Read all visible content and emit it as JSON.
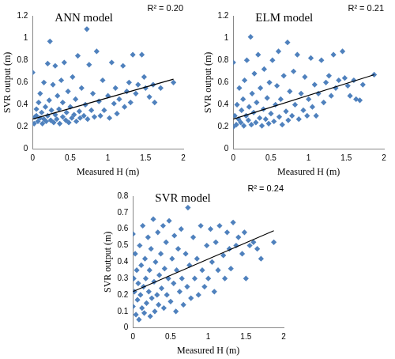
{
  "chart_data": [
    {
      "type": "scatter",
      "title": "ANN model",
      "annotation": "R² = 0.20",
      "x_label": "Measured H (m)",
      "y_label": "SVR output (m)",
      "xlim": [
        0,
        2
      ],
      "xticks": [
        0,
        0.5,
        1,
        1.5,
        2
      ],
      "ylim": [
        0,
        1.2
      ],
      "yticks": [
        0,
        0.2,
        0.4,
        0.6,
        0.8,
        1,
        1.2
      ],
      "grid": false,
      "series": [
        {
          "color": "#4f81bd",
          "marker": "diamond",
          "x": [
            0,
            0.02,
            0.03,
            0.05,
            0.05,
            0.07,
            0.08,
            0.1,
            0.1,
            0.12,
            0.13,
            0.15,
            0.15,
            0.17,
            0.18,
            0.2,
            0.2,
            0.22,
            0.23,
            0.24,
            0.25,
            0.27,
            0.28,
            0.3,
            0.3,
            0.32,
            0.33,
            0.35,
            0.36,
            0.38,
            0.4,
            0.4,
            0.42,
            0.44,
            0.45,
            0.47,
            0.48,
            0.5,
            0.52,
            0.53,
            0.55,
            0.57,
            0.58,
            0.6,
            0.62,
            0.63,
            0.65,
            0.68,
            0.7,
            0.72,
            0.73,
            0.75,
            0.78,
            0.8,
            0.82,
            0.85,
            0.88,
            0.9,
            0.93,
            0.95,
            1.0,
            1.02,
            1.05,
            1.08,
            1.1,
            1.12,
            1.15,
            1.2,
            1.22,
            1.25,
            1.28,
            1.3,
            1.33,
            1.37,
            1.4,
            1.45,
            1.48,
            1.5,
            1.55,
            1.6,
            1.62,
            1.7,
            1.87
          ],
          "values": [
            0.69,
            0.23,
            0.29,
            0.3,
            0.36,
            0.25,
            0.42,
            0.28,
            0.5,
            0.33,
            0.23,
            0.6,
            0.27,
            0.38,
            0.25,
            0.3,
            0.77,
            0.44,
            0.97,
            0.26,
            0.35,
            0.58,
            0.24,
            0.31,
            0.75,
            0.27,
            0.48,
            0.36,
            0.23,
            0.62,
            0.29,
            0.42,
            0.78,
            0.26,
            0.33,
            0.52,
            0.24,
            0.38,
            0.28,
            0.65,
            0.31,
            0.45,
            0.25,
            0.84,
            0.34,
            0.28,
            0.55,
            0.3,
            0.4,
            1.08,
            0.27,
            0.76,
            0.35,
            0.5,
            0.29,
            0.88,
            0.43,
            0.3,
            0.62,
            0.35,
            0.48,
            0.28,
            0.78,
            0.41,
            0.55,
            0.32,
            0.45,
            0.75,
            0.38,
            0.52,
            0.6,
            0.42,
            0.85,
            0.5,
            0.58,
            0.85,
            0.65,
            0.55,
            0.47,
            0.58,
            0.42,
            0.55,
            0.6
          ]
        },
        {
          "type": "line",
          "color": "#000000",
          "line_style": "solid",
          "x": [
            0,
            1.87
          ],
          "values": [
            0.27,
            0.63
          ]
        }
      ]
    },
    {
      "type": "scatter",
      "title": "ELM model",
      "annotation": "R² = 0.21",
      "x_label": "Measured H (m)",
      "y_label": "SVR output (m)",
      "xlim": [
        0,
        2
      ],
      "xticks": [
        0,
        0.5,
        1,
        1.5,
        2
      ],
      "ylim": [
        0,
        1.2
      ],
      "yticks": [
        0,
        0.2,
        0.4,
        0.6,
        0.8,
        1,
        1.2
      ],
      "grid": false,
      "series": [
        {
          "color": "#4f81bd",
          "marker": "diamond",
          "x": [
            0,
            0,
            0.02,
            0.04,
            0.05,
            0.07,
            0.08,
            0.1,
            0.11,
            0.13,
            0.14,
            0.15,
            0.17,
            0.18,
            0.2,
            0.21,
            0.23,
            0.24,
            0.25,
            0.27,
            0.28,
            0.3,
            0.31,
            0.33,
            0.35,
            0.36,
            0.38,
            0.4,
            0.41,
            0.43,
            0.45,
            0.47,
            0.48,
            0.5,
            0.52,
            0.54,
            0.56,
            0.58,
            0.6,
            0.61,
            0.63,
            0.65,
            0.67,
            0.7,
            0.72,
            0.73,
            0.75,
            0.78,
            0.8,
            0.82,
            0.85,
            0.87,
            0.9,
            0.93,
            0.95,
            0.98,
            1.0,
            1.03,
            1.05,
            1.08,
            1.1,
            1.13,
            1.17,
            1.2,
            1.23,
            1.27,
            1.3,
            1.33,
            1.36,
            1.4,
            1.45,
            1.48,
            1.52,
            1.55,
            1.6,
            1.63,
            1.68,
            1.72,
            1.87
          ],
          "values": [
            0.78,
            0.2,
            0.3,
            0.22,
            0.4,
            0.27,
            0.55,
            0.24,
            0.35,
            0.45,
            0.21,
            0.62,
            0.3,
            0.8,
            0.26,
            0.38,
            1.01,
            0.22,
            0.5,
            0.33,
            0.68,
            0.24,
            0.42,
            0.85,
            0.28,
            0.55,
            0.21,
            0.36,
            0.72,
            0.27,
            0.46,
            0.23,
            0.6,
            0.32,
            0.8,
            0.25,
            0.4,
            0.57,
            0.88,
            0.29,
            0.45,
            0.22,
            0.66,
            0.34,
            0.96,
            0.26,
            0.52,
            0.3,
            0.7,
            0.4,
            0.85,
            0.27,
            0.5,
            0.35,
            0.65,
            0.3,
            0.45,
            0.82,
            0.38,
            0.58,
            0.3,
            0.5,
            0.8,
            0.42,
            0.6,
            0.66,
            0.48,
            0.85,
            0.55,
            0.62,
            0.88,
            0.64,
            0.57,
            0.48,
            0.62,
            0.45,
            0.44,
            0.58,
            0.67
          ]
        },
        {
          "type": "line",
          "color": "#000000",
          "line_style": "solid",
          "x": [
            0,
            1.87
          ],
          "values": [
            0.27,
            0.67
          ]
        }
      ]
    },
    {
      "type": "scatter",
      "title": "SVR model",
      "annotation": "R² = 0.24",
      "x_label": "Measured H (m)",
      "y_label": "SVR output (m)",
      "xlim": [
        0,
        2
      ],
      "xticks": [
        0,
        0.5,
        1,
        1.5,
        2
      ],
      "ylim": [
        0,
        0.8
      ],
      "yticks": [
        0,
        0.1,
        0.2,
        0.3,
        0.4,
        0.5,
        0.6,
        0.7,
        0.8
      ],
      "grid": false,
      "series": [
        {
          "color": "#4f81bd",
          "marker": "diamond",
          "x": [
            0,
            0,
            0.01,
            0.02,
            0.03,
            0.04,
            0.05,
            0.06,
            0.07,
            0.08,
            0.09,
            0.1,
            0.11,
            0.12,
            0.13,
            0.14,
            0.15,
            0.16,
            0.17,
            0.18,
            0.2,
            0.21,
            0.22,
            0.23,
            0.24,
            0.25,
            0.27,
            0.28,
            0.29,
            0.3,
            0.32,
            0.33,
            0.34,
            0.35,
            0.37,
            0.38,
            0.4,
            0.41,
            0.42,
            0.44,
            0.45,
            0.47,
            0.48,
            0.5,
            0.52,
            0.54,
            0.55,
            0.57,
            0.58,
            0.6,
            0.62,
            0.64,
            0.65,
            0.67,
            0.7,
            0.72,
            0.73,
            0.75,
            0.77,
            0.8,
            0.82,
            0.85,
            0.87,
            0.9,
            0.92,
            0.95,
            0.98,
            1.0,
            1.03,
            1.05,
            1.08,
            1.1,
            1.13,
            1.15,
            1.2,
            1.22,
            1.25,
            1.28,
            1.3,
            1.33,
            1.37,
            1.4,
            1.45,
            1.48,
            1.5,
            1.55,
            1.6,
            1.65,
            1.7,
            1.87
          ],
          "values": [
            0.57,
            0.13,
            0.3,
            0.22,
            0.45,
            0.08,
            0.35,
            0.17,
            0.27,
            0.05,
            0.5,
            0.2,
            0.38,
            0.12,
            0.62,
            0.25,
            0.09,
            0.42,
            0.3,
            0.15,
            0.55,
            0.22,
            0.35,
            0.07,
            0.48,
            0.18,
            0.66,
            0.28,
            0.1,
            0.4,
            0.2,
            0.58,
            0.14,
            0.32,
            0.45,
            0.24,
            0.62,
            0.12,
            0.36,
            0.52,
            0.2,
            0.3,
            0.65,
            0.16,
            0.42,
            0.27,
            0.56,
            0.1,
            0.35,
            0.48,
            0.22,
            0.6,
            0.3,
            0.14,
            0.45,
            0.25,
            0.73,
            0.38,
            0.18,
            0.55,
            0.3,
            0.42,
            0.2,
            0.62,
            0.35,
            0.25,
            0.5,
            0.3,
            0.6,
            0.4,
            0.22,
            0.52,
            0.35,
            0.62,
            0.44,
            0.3,
            0.58,
            0.48,
            0.36,
            0.64,
            0.5,
            0.55,
            0.45,
            0.58,
            0.3,
            0.5,
            0.52,
            0.48,
            0.42,
            0.52
          ]
        },
        {
          "type": "line",
          "color": "#000000",
          "line_style": "solid",
          "x": [
            0,
            1.87
          ],
          "values": [
            0.22,
            0.59
          ]
        }
      ]
    }
  ]
}
